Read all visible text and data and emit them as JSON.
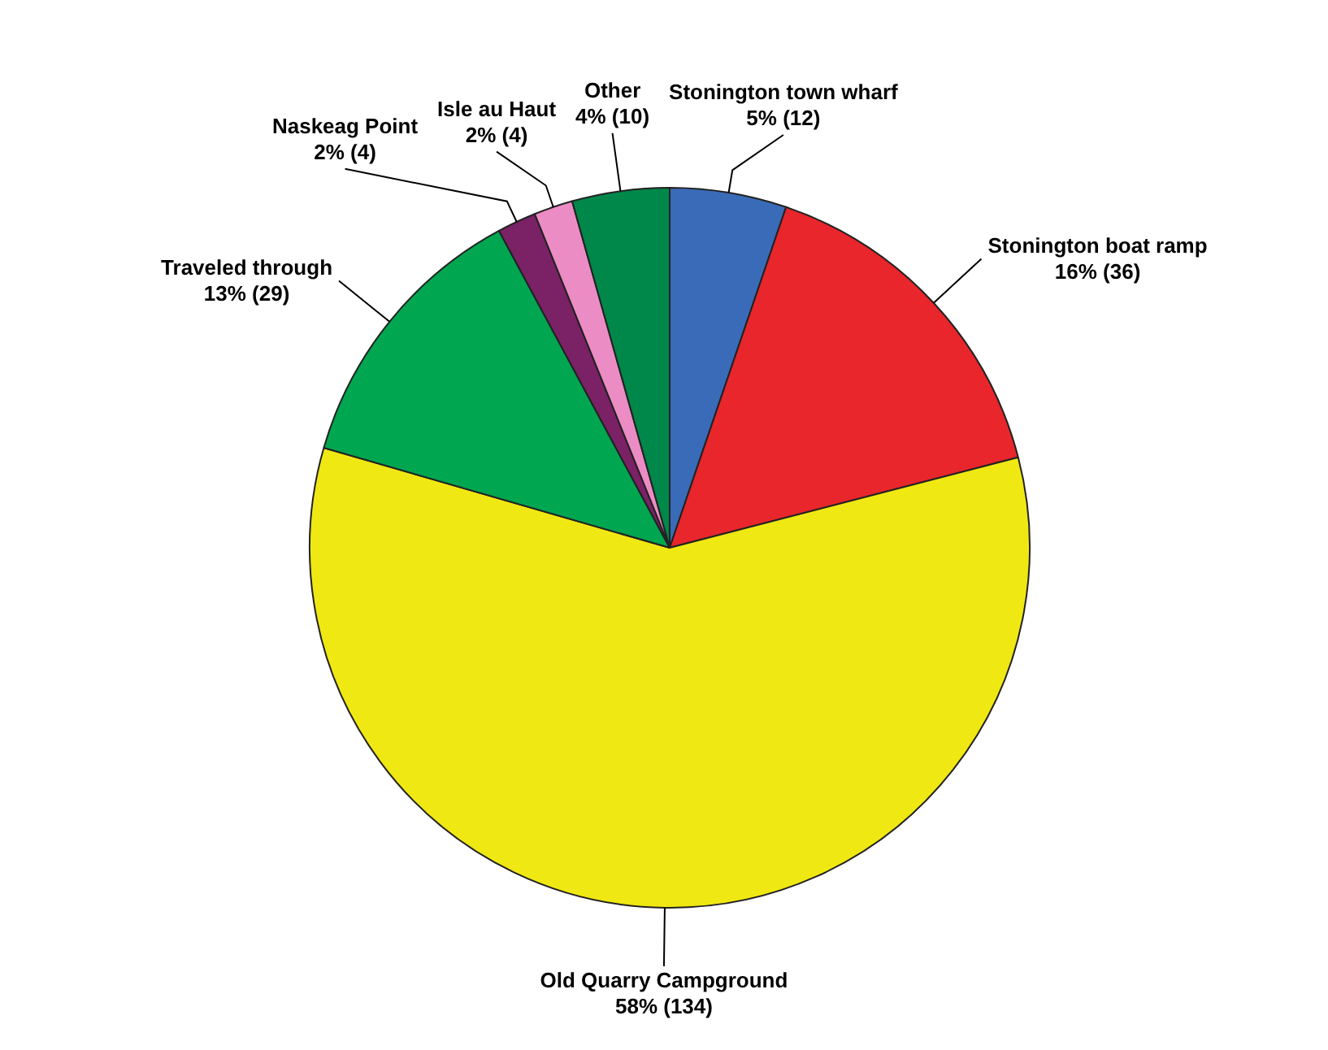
{
  "chart_data": {
    "type": "pie",
    "categories": [
      "Stonington town wharf",
      "Stonington boat ramp",
      "Old Quarry Campground",
      "Traveled through",
      "Naskeag Point",
      "Isle au Haut",
      "Other"
    ],
    "values": [
      12,
      36,
      134,
      29,
      4,
      4,
      10
    ],
    "colors": [
      "#3a6bb8",
      "#e8262b",
      "#f0e812",
      "#00a650",
      "#7b2166",
      "#ec8cc4",
      "#00874a"
    ],
    "value_labels": [
      "5% (12)",
      "16% (36)",
      "58% (134)",
      "13% (29)",
      "2% (4)",
      "2% (4)",
      "4% (10)"
    ]
  }
}
